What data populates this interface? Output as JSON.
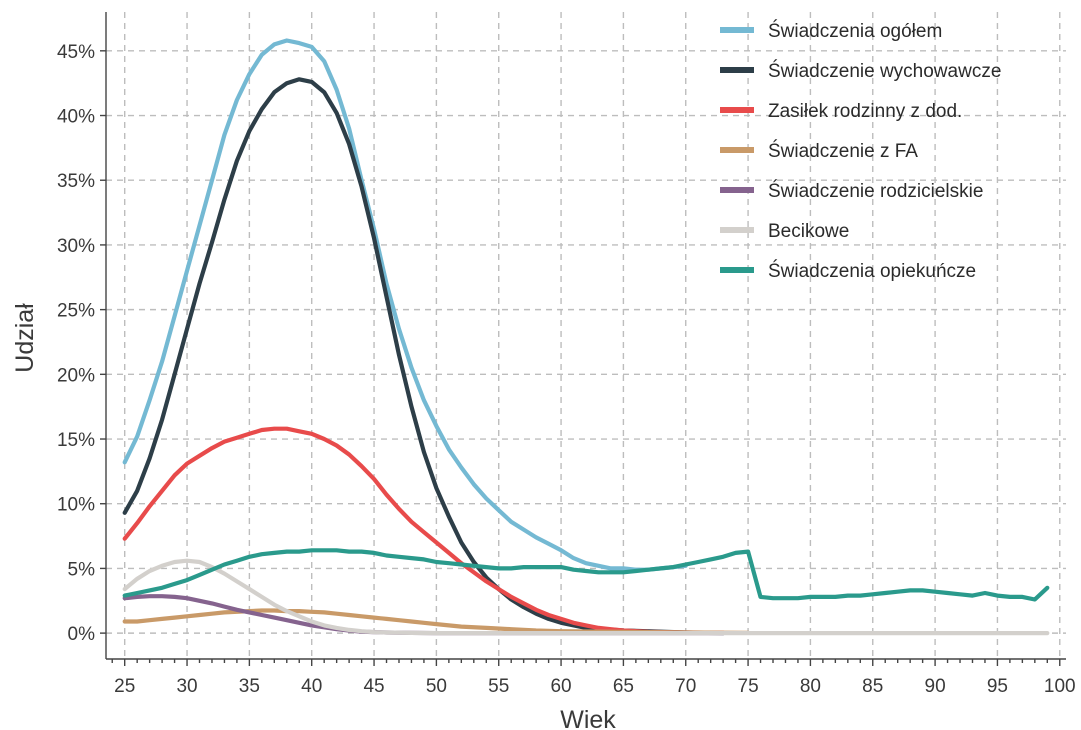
{
  "chart_data": {
    "type": "line",
    "xlabel": "Wiek",
    "ylabel": "Udział",
    "xlim": [
      23.5,
      100.5
    ],
    "ylim": [
      -2,
      48
    ],
    "x_ticks": [
      25,
      30,
      35,
      40,
      45,
      50,
      55,
      60,
      65,
      70,
      75,
      80,
      85,
      90,
      95,
      100
    ],
    "y_ticks": [
      0,
      5,
      10,
      15,
      20,
      25,
      30,
      35,
      40,
      45
    ],
    "y_tick_suffix": "%",
    "grid": true,
    "legend_position": "top-right",
    "series": [
      {
        "name": "Świadczenia ogółem",
        "color": "#74b9d3",
        "points": [
          [
            25,
            13.2
          ],
          [
            26,
            15.2
          ],
          [
            27,
            18
          ],
          [
            28,
            21
          ],
          [
            29,
            24.5
          ],
          [
            30,
            28
          ],
          [
            31,
            31.5
          ],
          [
            32,
            35
          ],
          [
            33,
            38.5
          ],
          [
            34,
            41.2
          ],
          [
            35,
            43.2
          ],
          [
            36,
            44.7
          ],
          [
            37,
            45.5
          ],
          [
            38,
            45.8
          ],
          [
            39,
            45.6
          ],
          [
            40,
            45.3
          ],
          [
            41,
            44.2
          ],
          [
            42,
            42
          ],
          [
            43,
            39
          ],
          [
            44,
            35
          ],
          [
            45,
            31.2
          ],
          [
            46,
            27
          ],
          [
            47,
            23.5
          ],
          [
            48,
            20.5
          ],
          [
            49,
            18
          ],
          [
            50,
            16
          ],
          [
            51,
            14.2
          ],
          [
            52,
            12.8
          ],
          [
            53,
            11.5
          ],
          [
            54,
            10.4
          ],
          [
            55,
            9.5
          ],
          [
            56,
            8.6
          ],
          [
            57,
            8
          ],
          [
            58,
            7.4
          ],
          [
            59,
            6.9
          ],
          [
            60,
            6.4
          ],
          [
            61,
            5.8
          ],
          [
            62,
            5.4
          ],
          [
            63,
            5.2
          ],
          [
            64,
            5
          ],
          [
            65,
            5
          ],
          [
            66,
            4.9
          ],
          [
            67,
            4.9
          ],
          [
            68,
            5
          ],
          [
            69,
            5.1
          ],
          [
            70,
            5.2
          ]
        ]
      },
      {
        "name": "Świadczenie wychowawcze",
        "color": "#2d3e48",
        "points": [
          [
            25,
            9.3
          ],
          [
            26,
            11
          ],
          [
            27,
            13.5
          ],
          [
            28,
            16.5
          ],
          [
            29,
            20
          ],
          [
            30,
            23.5
          ],
          [
            31,
            27
          ],
          [
            32,
            30.2
          ],
          [
            33,
            33.5
          ],
          [
            34,
            36.5
          ],
          [
            35,
            38.8
          ],
          [
            36,
            40.5
          ],
          [
            37,
            41.8
          ],
          [
            38,
            42.5
          ],
          [
            39,
            42.8
          ],
          [
            40,
            42.6
          ],
          [
            41,
            41.8
          ],
          [
            42,
            40.2
          ],
          [
            43,
            37.8
          ],
          [
            44,
            34.5
          ],
          [
            45,
            30.5
          ],
          [
            46,
            26
          ],
          [
            47,
            21.5
          ],
          [
            48,
            17.5
          ],
          [
            49,
            14
          ],
          [
            50,
            11.2
          ],
          [
            51,
            9
          ],
          [
            52,
            7
          ],
          [
            53,
            5.5
          ],
          [
            54,
            4.3
          ],
          [
            55,
            3.4
          ],
          [
            56,
            2.6
          ],
          [
            57,
            2
          ],
          [
            58,
            1.5
          ],
          [
            59,
            1.1
          ],
          [
            60,
            0.8
          ],
          [
            62,
            0.4
          ],
          [
            65,
            0.2
          ],
          [
            70,
            0.05
          ],
          [
            73,
            0
          ]
        ]
      },
      {
        "name": "Zasiłek rodzinny z dod.",
        "color": "#e84b4b",
        "points": [
          [
            25,
            7.3
          ],
          [
            26,
            8.5
          ],
          [
            27,
            9.8
          ],
          [
            28,
            11
          ],
          [
            29,
            12.2
          ],
          [
            30,
            13.1
          ],
          [
            31,
            13.7
          ],
          [
            32,
            14.3
          ],
          [
            33,
            14.8
          ],
          [
            34,
            15.1
          ],
          [
            35,
            15.4
          ],
          [
            36,
            15.7
          ],
          [
            37,
            15.8
          ],
          [
            38,
            15.8
          ],
          [
            39,
            15.6
          ],
          [
            40,
            15.4
          ],
          [
            41,
            15
          ],
          [
            42,
            14.5
          ],
          [
            43,
            13.8
          ],
          [
            44,
            12.9
          ],
          [
            45,
            11.9
          ],
          [
            46,
            10.7
          ],
          [
            47,
            9.6
          ],
          [
            48,
            8.6
          ],
          [
            49,
            7.8
          ],
          [
            50,
            7
          ],
          [
            51,
            6.2
          ],
          [
            52,
            5.4
          ],
          [
            53,
            4.7
          ],
          [
            54,
            4
          ],
          [
            55,
            3.4
          ],
          [
            56,
            2.8
          ],
          [
            57,
            2.3
          ],
          [
            58,
            1.8
          ],
          [
            59,
            1.4
          ],
          [
            60,
            1.1
          ],
          [
            61,
            0.8
          ],
          [
            62,
            0.6
          ],
          [
            63,
            0.4
          ],
          [
            64,
            0.3
          ],
          [
            65,
            0.2
          ],
          [
            67,
            0.1
          ],
          [
            70,
            0.05
          ],
          [
            73,
            0.03
          ]
        ]
      },
      {
        "name": "Świadczenie z FA",
        "color": "#c99a68",
        "points": [
          [
            25,
            0.9
          ],
          [
            26,
            0.9
          ],
          [
            27,
            1
          ],
          [
            28,
            1.1
          ],
          [
            29,
            1.2
          ],
          [
            30,
            1.3
          ],
          [
            31,
            1.4
          ],
          [
            32,
            1.5
          ],
          [
            33,
            1.6
          ],
          [
            34,
            1.65
          ],
          [
            35,
            1.7
          ],
          [
            36,
            1.75
          ],
          [
            37,
            1.75
          ],
          [
            38,
            1.7
          ],
          [
            39,
            1.7
          ],
          [
            40,
            1.65
          ],
          [
            41,
            1.6
          ],
          [
            42,
            1.5
          ],
          [
            43,
            1.4
          ],
          [
            44,
            1.3
          ],
          [
            45,
            1.2
          ],
          [
            46,
            1.1
          ],
          [
            47,
            1
          ],
          [
            48,
            0.9
          ],
          [
            49,
            0.8
          ],
          [
            50,
            0.7
          ],
          [
            52,
            0.5
          ],
          [
            54,
            0.4
          ],
          [
            56,
            0.3
          ],
          [
            58,
            0.2
          ],
          [
            60,
            0.15
          ],
          [
            65,
            0.1
          ],
          [
            70,
            0.05
          ],
          [
            75,
            0.02
          ]
        ]
      },
      {
        "name": "Świadczenie rodzicielskie",
        "color": "#85638e",
        "points": [
          [
            25,
            2.7
          ],
          [
            26,
            2.8
          ],
          [
            27,
            2.85
          ],
          [
            28,
            2.85
          ],
          [
            29,
            2.8
          ],
          [
            30,
            2.7
          ],
          [
            31,
            2.5
          ],
          [
            32,
            2.3
          ],
          [
            33,
            2.05
          ],
          [
            34,
            1.8
          ],
          [
            35,
            1.6
          ],
          [
            36,
            1.4
          ],
          [
            37,
            1.2
          ],
          [
            38,
            1
          ],
          [
            39,
            0.8
          ],
          [
            40,
            0.6
          ],
          [
            41,
            0.45
          ],
          [
            42,
            0.3
          ],
          [
            43,
            0.2
          ],
          [
            44,
            0.12
          ],
          [
            45,
            0.08
          ],
          [
            46,
            0.05
          ],
          [
            48,
            0.02
          ],
          [
            50,
            0
          ],
          [
            60,
            0
          ],
          [
            70,
            0
          ],
          [
            73,
            0
          ]
        ]
      },
      {
        "name": "Becikowe",
        "color": "#d3d0cc",
        "points": [
          [
            25,
            3.4
          ],
          [
            26,
            4.2
          ],
          [
            27,
            4.8
          ],
          [
            28,
            5.2
          ],
          [
            29,
            5.5
          ],
          [
            30,
            5.6
          ],
          [
            31,
            5.5
          ],
          [
            32,
            5.1
          ],
          [
            33,
            4.6
          ],
          [
            34,
            4
          ],
          [
            35,
            3.4
          ],
          [
            36,
            2.8
          ],
          [
            37,
            2.2
          ],
          [
            38,
            1.7
          ],
          [
            39,
            1.3
          ],
          [
            40,
            0.9
          ],
          [
            41,
            0.6
          ],
          [
            42,
            0.4
          ],
          [
            43,
            0.25
          ],
          [
            44,
            0.15
          ],
          [
            45,
            0.08
          ],
          [
            46,
            0.05
          ],
          [
            48,
            0.02
          ],
          [
            50,
            0
          ],
          [
            60,
            0
          ],
          [
            70,
            0
          ],
          [
            80,
            0
          ],
          [
            90,
            0
          ],
          [
            99,
            0
          ]
        ]
      },
      {
        "name": "Świadczenia opiekuńcze",
        "color": "#2a9a8c",
        "points": [
          [
            25,
            2.9
          ],
          [
            26,
            3.1
          ],
          [
            27,
            3.3
          ],
          [
            28,
            3.5
          ],
          [
            29,
            3.8
          ],
          [
            30,
            4.1
          ],
          [
            31,
            4.5
          ],
          [
            32,
            4.9
          ],
          [
            33,
            5.3
          ],
          [
            34,
            5.6
          ],
          [
            35,
            5.9
          ],
          [
            36,
            6.1
          ],
          [
            37,
            6.2
          ],
          [
            38,
            6.3
          ],
          [
            39,
            6.3
          ],
          [
            40,
            6.4
          ],
          [
            41,
            6.4
          ],
          [
            42,
            6.4
          ],
          [
            43,
            6.3
          ],
          [
            44,
            6.3
          ],
          [
            45,
            6.2
          ],
          [
            46,
            6
          ],
          [
            47,
            5.9
          ],
          [
            48,
            5.8
          ],
          [
            49,
            5.7
          ],
          [
            50,
            5.5
          ],
          [
            51,
            5.4
          ],
          [
            52,
            5.3
          ],
          [
            53,
            5.2
          ],
          [
            54,
            5.1
          ],
          [
            55,
            5
          ],
          [
            56,
            5
          ],
          [
            57,
            5.1
          ],
          [
            58,
            5.1
          ],
          [
            59,
            5.1
          ],
          [
            60,
            5.1
          ],
          [
            61,
            4.9
          ],
          [
            62,
            4.8
          ],
          [
            63,
            4.7
          ],
          [
            64,
            4.7
          ],
          [
            65,
            4.7
          ],
          [
            66,
            4.8
          ],
          [
            67,
            4.9
          ],
          [
            68,
            5
          ],
          [
            69,
            5.1
          ],
          [
            70,
            5.3
          ],
          [
            71,
            5.5
          ],
          [
            72,
            5.7
          ],
          [
            73,
            5.9
          ],
          [
            74,
            6.2
          ],
          [
            75,
            6.3
          ],
          [
            76,
            2.8
          ],
          [
            77,
            2.7
          ],
          [
            78,
            2.7
          ],
          [
            79,
            2.7
          ],
          [
            80,
            2.8
          ],
          [
            81,
            2.8
          ],
          [
            82,
            2.8
          ],
          [
            83,
            2.9
          ],
          [
            84,
            2.9
          ],
          [
            85,
            3
          ],
          [
            86,
            3.1
          ],
          [
            87,
            3.2
          ],
          [
            88,
            3.3
          ],
          [
            89,
            3.3
          ],
          [
            90,
            3.2
          ],
          [
            91,
            3.1
          ],
          [
            92,
            3
          ],
          [
            93,
            2.9
          ],
          [
            94,
            3.1
          ],
          [
            95,
            2.9
          ],
          [
            96,
            2.8
          ],
          [
            97,
            2.8
          ],
          [
            98,
            2.6
          ],
          [
            99,
            3.5
          ]
        ]
      }
    ]
  }
}
